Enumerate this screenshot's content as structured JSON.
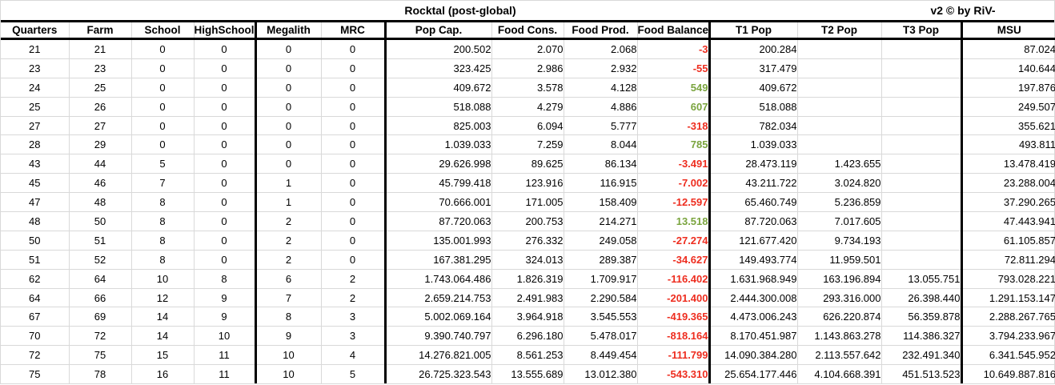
{
  "sheet": {
    "title": "Rocktal (post-global)",
    "credit": "v2 © by RiV-"
  },
  "colors": {
    "negative": "#ee2d1f",
    "positive": "#7aa43e",
    "grid_light": "#d9d9d9",
    "border_strong": "#000000"
  },
  "table": {
    "headers": [
      "Quarters",
      "Farm",
      "School",
      "HighSchool",
      "Megalith",
      "MRC",
      "Pop Cap.",
      "Food Cons.",
      "Food Prod.",
      "Food Balance",
      "T1 Pop",
      "T2 Pop",
      "T3 Pop",
      "MSU"
    ],
    "rows": [
      {
        "cells": [
          "21",
          "21",
          "0",
          "0",
          "0",
          "0",
          "200.502",
          "2.070",
          "2.068",
          "-3",
          "200.284",
          "",
          "",
          "87.024"
        ]
      },
      {
        "cells": [
          "23",
          "23",
          "0",
          "0",
          "0",
          "0",
          "323.425",
          "2.986",
          "2.932",
          "-55",
          "317.479",
          "",
          "",
          "140.644"
        ]
      },
      {
        "cells": [
          "24",
          "25",
          "0",
          "0",
          "0",
          "0",
          "409.672",
          "3.578",
          "4.128",
          "549",
          "409.672",
          "",
          "",
          "197.876"
        ]
      },
      {
        "cells": [
          "25",
          "26",
          "0",
          "0",
          "0",
          "0",
          "518.088",
          "4.279",
          "4.886",
          "607",
          "518.088",
          "",
          "",
          "249.507"
        ]
      },
      {
        "cells": [
          "27",
          "27",
          "0",
          "0",
          "0",
          "0",
          "825.003",
          "6.094",
          "5.777",
          "-318",
          "782.034",
          "",
          "",
          "355.621"
        ]
      },
      {
        "cells": [
          "28",
          "29",
          "0",
          "0",
          "0",
          "0",
          "1.039.033",
          "7.259",
          "8.044",
          "785",
          "1.039.033",
          "",
          "",
          "493.811"
        ]
      },
      {
        "cells": [
          "43",
          "44",
          "5",
          "0",
          "0",
          "0",
          "29.626.998",
          "89.625",
          "86.134",
          "-3.491",
          "28.473.119",
          "1.423.655",
          "",
          "13.478.419"
        ]
      },
      {
        "cells": [
          "45",
          "46",
          "7",
          "0",
          "1",
          "0",
          "45.799.418",
          "123.916",
          "116.915",
          "-7.002",
          "43.211.722",
          "3.024.820",
          "",
          "23.288.004"
        ]
      },
      {
        "cells": [
          "47",
          "48",
          "8",
          "0",
          "1",
          "0",
          "70.666.001",
          "171.005",
          "158.409",
          "-12.597",
          "65.460.749",
          "5.236.859",
          "",
          "37.290.265"
        ]
      },
      {
        "cells": [
          "48",
          "50",
          "8",
          "0",
          "2",
          "0",
          "87.720.063",
          "200.753",
          "214.271",
          "13.518",
          "87.720.063",
          "7.017.605",
          "",
          "47.443.941"
        ]
      },
      {
        "cells": [
          "50",
          "51",
          "8",
          "0",
          "2",
          "0",
          "135.001.993",
          "276.332",
          "249.058",
          "-27.274",
          "121.677.420",
          "9.734.193",
          "",
          "61.105.857"
        ]
      },
      {
        "cells": [
          "51",
          "52",
          "8",
          "0",
          "2",
          "0",
          "167.381.295",
          "324.013",
          "289.387",
          "-34.627",
          "149.493.774",
          "11.959.501",
          "",
          "72.811.294"
        ]
      },
      {
        "cells": [
          "62",
          "64",
          "10",
          "8",
          "6",
          "2",
          "1.743.064.486",
          "1.826.319",
          "1.709.917",
          "-116.402",
          "1.631.968.949",
          "163.196.894",
          "13.055.751",
          "793.028.221"
        ]
      },
      {
        "cells": [
          "64",
          "66",
          "12",
          "9",
          "7",
          "2",
          "2.659.214.753",
          "2.491.983",
          "2.290.584",
          "-201.400",
          "2.444.300.008",
          "293.316.000",
          "26.398.440",
          "1.291.153.147"
        ]
      },
      {
        "cells": [
          "67",
          "69",
          "14",
          "9",
          "8",
          "3",
          "5.002.069.164",
          "3.964.918",
          "3.545.553",
          "-419.365",
          "4.473.006.243",
          "626.220.874",
          "56.359.878",
          "2.288.267.765"
        ]
      },
      {
        "cells": [
          "70",
          "72",
          "14",
          "10",
          "9",
          "3",
          "9.390.740.797",
          "6.296.180",
          "5.478.017",
          "-818.164",
          "8.170.451.987",
          "1.143.863.278",
          "114.386.327",
          "3.794.233.967"
        ]
      },
      {
        "cells": [
          "72",
          "75",
          "15",
          "11",
          "10",
          "4",
          "14.276.821.005",
          "8.561.253",
          "8.449.454",
          "-111.799",
          "14.090.384.280",
          "2.113.557.642",
          "232.491.340",
          "6.341.545.952"
        ]
      },
      {
        "cells": [
          "75",
          "78",
          "16",
          "11",
          "10",
          "5",
          "26.725.323.543",
          "13.555.689",
          "13.012.380",
          "-543.310",
          "25.654.177.446",
          "4.104.668.391",
          "451.513.523",
          "10.649.887.816"
        ]
      }
    ]
  }
}
